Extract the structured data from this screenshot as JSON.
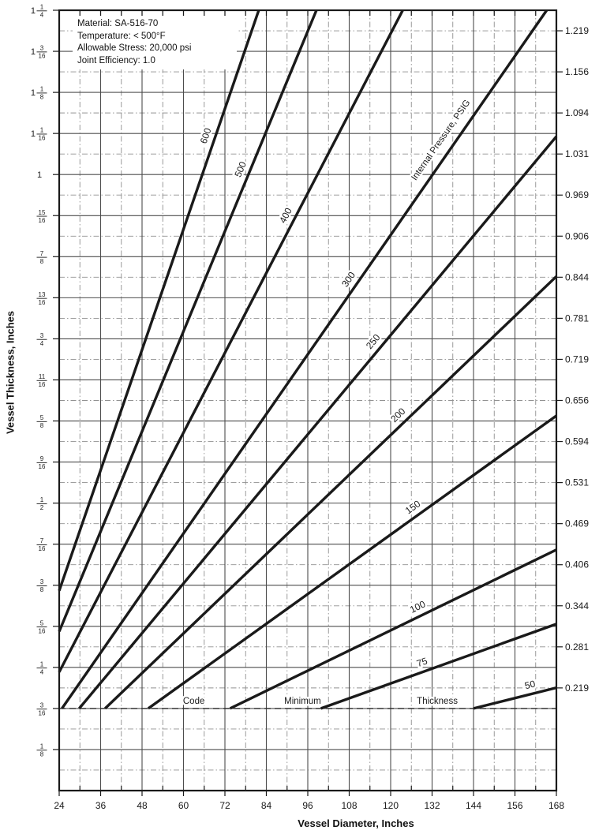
{
  "figure": {
    "info_box": {
      "lines": [
        "Material: SA-516-70",
        "Temperature: < 500°F",
        "Allowable Stress: 20,000 psi",
        "Joint Efficiency: 1.0"
      ]
    }
  },
  "chart_data": {
    "type": "line",
    "xlabel": "Vessel Diameter, Inches",
    "ylabel": "Vessel Thickness, Inches",
    "x_axis": {
      "min": 24,
      "max": 168,
      "major_step": 12,
      "minor_step": 6,
      "tick_labels": [
        "24",
        "36",
        "48",
        "60",
        "72",
        "84",
        "96",
        "108",
        "120",
        "132",
        "144",
        "156",
        "168"
      ]
    },
    "y_axis_left": {
      "min": 0.0625,
      "max": 1.25,
      "major_step": 0.0625,
      "labels": [
        {
          "t": 1.25,
          "whole": "1",
          "num": "1",
          "den": "4"
        },
        {
          "t": 1.1875,
          "whole": "1",
          "num": "3",
          "den": "16"
        },
        {
          "t": 1.125,
          "whole": "1",
          "num": "1",
          "den": "8"
        },
        {
          "t": 1.0625,
          "whole": "1",
          "num": "1",
          "den": "16"
        },
        {
          "t": 1.0,
          "whole": "1"
        },
        {
          "t": 0.9375,
          "num": "15",
          "den": "16"
        },
        {
          "t": 0.875,
          "num": "7",
          "den": "8"
        },
        {
          "t": 0.8125,
          "num": "13",
          "den": "16"
        },
        {
          "t": 0.75,
          "num": "3",
          "den": "4"
        },
        {
          "t": 0.6875,
          "num": "11",
          "den": "16"
        },
        {
          "t": 0.625,
          "num": "5",
          "den": "8"
        },
        {
          "t": 0.5625,
          "num": "9",
          "den": "16"
        },
        {
          "t": 0.5,
          "num": "1",
          "den": "2"
        },
        {
          "t": 0.4375,
          "num": "7",
          "den": "16"
        },
        {
          "t": 0.375,
          "num": "3",
          "den": "8"
        },
        {
          "t": 0.3125,
          "num": "5",
          "den": "16"
        },
        {
          "t": 0.25,
          "num": "1",
          "den": "4"
        },
        {
          "t": 0.1875,
          "num": "3",
          "den": "16"
        },
        {
          "t": 0.125,
          "num": "1",
          "den": "8"
        }
      ]
    },
    "y_axis_right": {
      "labels": [
        {
          "t": 1.21875,
          "text": "1.219"
        },
        {
          "t": 1.15625,
          "text": "1.156"
        },
        {
          "t": 1.09375,
          "text": "1.094"
        },
        {
          "t": 1.03125,
          "text": "1.031"
        },
        {
          "t": 0.96875,
          "text": "0.969"
        },
        {
          "t": 0.90625,
          "text": "0.906"
        },
        {
          "t": 0.84375,
          "text": "0.844"
        },
        {
          "t": 0.78125,
          "text": "0.781"
        },
        {
          "t": 0.71875,
          "text": "0.719"
        },
        {
          "t": 0.65625,
          "text": "0.656"
        },
        {
          "t": 0.59375,
          "text": "0.594"
        },
        {
          "t": 0.53125,
          "text": "0.531"
        },
        {
          "t": 0.46875,
          "text": "0.469"
        },
        {
          "t": 0.40625,
          "text": "0.406"
        },
        {
          "t": 0.34375,
          "text": "0.344"
        },
        {
          "t": 0.28125,
          "text": "0.281"
        },
        {
          "t": 0.21875,
          "text": "0.219"
        }
      ]
    },
    "series": [
      {
        "label": "600",
        "pressure": 600,
        "points": [
          [
            24,
            0.3666
          ],
          [
            81.8,
            1.25
          ]
        ],
        "label_d": 69
      },
      {
        "label": "500",
        "pressure": 500,
        "points": [
          [
            24,
            0.3046
          ],
          [
            98.5,
            1.25
          ]
        ],
        "label_d": 79
      },
      {
        "label": "400",
        "pressure": 400,
        "points": [
          [
            24,
            0.2429
          ],
          [
            123.5,
            1.25
          ]
        ],
        "label_d": 92
      },
      {
        "label": "300",
        "pressure": 300,
        "points": [
          [
            24.8,
            0.1875
          ],
          [
            165.2,
            1.25
          ]
        ],
        "label_d": 110
      },
      {
        "label": "250",
        "pressure": 250,
        "points": [
          [
            29.8,
            0.1875
          ],
          [
            168,
            1.058
          ]
        ],
        "label_d": 117
      },
      {
        "label": "200",
        "pressure": 200,
        "points": [
          [
            37.3,
            0.1875
          ],
          [
            168,
            0.845
          ]
        ],
        "label_d": 124
      },
      {
        "label": "150",
        "pressure": 150,
        "points": [
          [
            49.8,
            0.1875
          ],
          [
            168,
            0.633
          ]
        ],
        "label_d": 128
      },
      {
        "label": "100",
        "pressure": 100,
        "points": [
          [
            73.5,
            0.1875
          ],
          [
            168,
            0.429
          ]
        ],
        "label_d": 129
      },
      {
        "label": "75",
        "pressure": 75,
        "points": [
          [
            99.8,
            0.1875
          ],
          [
            168,
            0.316
          ]
        ],
        "label_d": 130
      },
      {
        "label": "50",
        "pressure": 50,
        "points": [
          [
            144,
            0.1875
          ],
          [
            168,
            0.219
          ]
        ],
        "label_d": 161
      }
    ],
    "series_family_label": {
      "text": "Internal Pressure, PSIG",
      "along_pressure": 300,
      "at_d": 135
    },
    "code_minimum_line": {
      "t": 0.1875,
      "style": "dashed",
      "words": [
        {
          "text": "Code",
          "d": 63
        },
        {
          "text": "Minimum",
          "d": 94.5
        },
        {
          "text": "Thickness",
          "d": 133.5
        }
      ]
    }
  },
  "colors": {
    "ink": "#1a1a1a",
    "grid_major": "#4d4d4d",
    "grid_minor": "#909090",
    "background": "#ffffff"
  }
}
